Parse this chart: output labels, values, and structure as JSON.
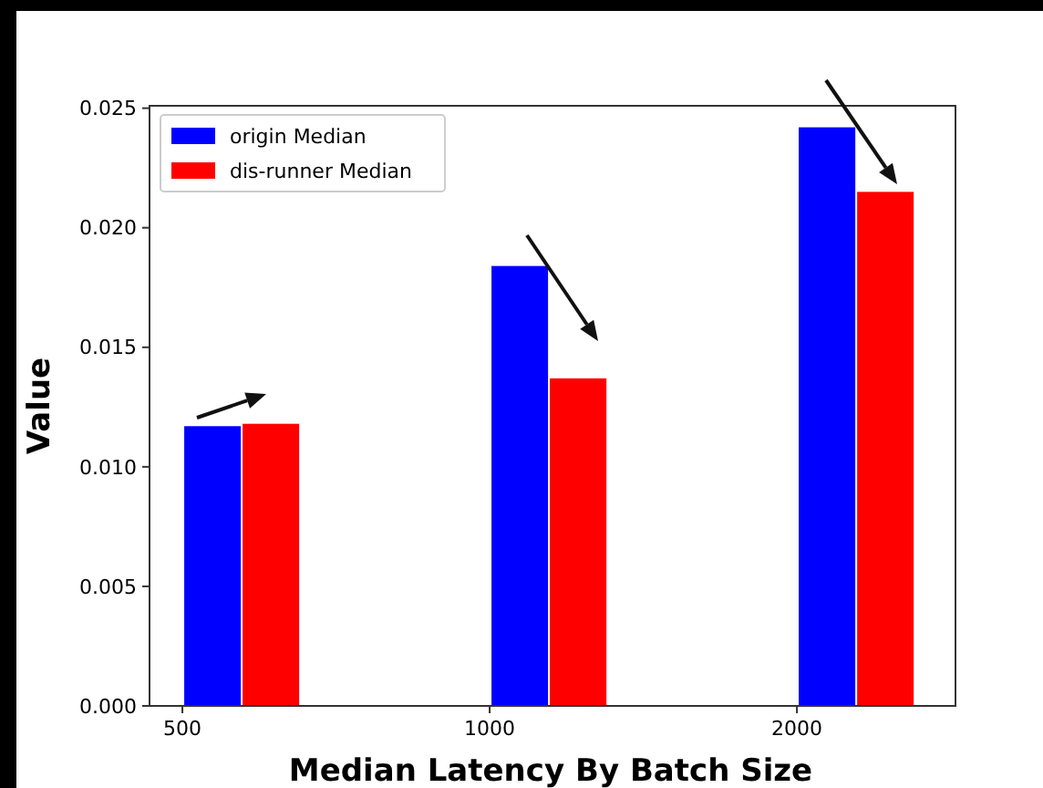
{
  "chart_data": {
    "type": "bar",
    "xlabel": "Median Latency By Batch Size",
    "ylabel": "Value",
    "categories": [
      "500",
      "1000",
      "2000"
    ],
    "series": [
      {
        "name": "origin Median",
        "color": "#0000ff",
        "values": [
          0.0117,
          0.0184,
          0.0242
        ]
      },
      {
        "name": "dis-runner Median",
        "color": "#ff0000",
        "values": [
          0.0118,
          0.0137,
          0.0215
        ]
      }
    ],
    "ylim": [
      0,
      0.0251
    ],
    "yticks": [
      {
        "value": 0,
        "label": "0.000"
      },
      {
        "value": 0.005,
        "label": "0.005"
      },
      {
        "value": 0.01,
        "label": "0.010"
      },
      {
        "value": 0.015,
        "label": "0.015"
      },
      {
        "value": 0.02,
        "label": "0.020"
      },
      {
        "value": 0.025,
        "label": "0.025"
      }
    ],
    "legend": "top left",
    "grid": false
  }
}
